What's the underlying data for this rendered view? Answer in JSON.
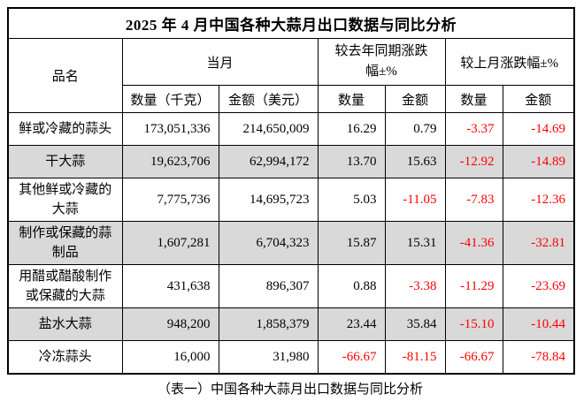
{
  "table": {
    "title": "2025 年 4 月中国各种大蒜月出口数据与同比分析",
    "caption": "（表一）中国各种大蒜月出口数据与同比分析",
    "headers": {
      "product": "品名",
      "current_month": "当月",
      "yoy": "较去年同期涨跌\n幅±%",
      "mom": "较上月涨跌幅±%",
      "qty_kg": "数量（千克）",
      "amt_usd": "金额（美元）",
      "qty": "数量",
      "amt": "金额"
    },
    "rows": [
      {
        "name": "鲜或冷藏的蒜头",
        "qty_kg": "173,051,336",
        "amt_usd": "214,650,009",
        "yoy_qty": "16.29",
        "yoy_amt": "0.79",
        "mom_qty": "-3.37",
        "mom_amt": "-14.69"
      },
      {
        "name": "干大蒜",
        "qty_kg": "19,623,706",
        "amt_usd": "62,994,172",
        "yoy_qty": "13.70",
        "yoy_amt": "15.63",
        "mom_qty": "-12.92",
        "mom_amt": "-14.89"
      },
      {
        "name": "其他鲜或冷藏的大蒜",
        "qty_kg": "7,775,736",
        "amt_usd": "14,695,723",
        "yoy_qty": "5.03",
        "yoy_amt": "-11.05",
        "mom_qty": "-7.83",
        "mom_amt": "-12.36"
      },
      {
        "name": "制作或保藏的蒜制品",
        "qty_kg": "1,607,281",
        "amt_usd": "6,704,323",
        "yoy_qty": "15.87",
        "yoy_amt": "15.31",
        "mom_qty": "-41.36",
        "mom_amt": "-32.81"
      },
      {
        "name": "用醋或醋酸制作或保藏的大蒜",
        "qty_kg": "431,638",
        "amt_usd": "896,307",
        "yoy_qty": "0.88",
        "yoy_amt": "-3.38",
        "mom_qty": "-11.29",
        "mom_amt": "-23.69"
      },
      {
        "name": "盐水大蒜",
        "qty_kg": "948,200",
        "amt_usd": "1,858,379",
        "yoy_qty": "23.44",
        "yoy_amt": "35.84",
        "mom_qty": "-15.10",
        "mom_amt": "-10.44"
      },
      {
        "name": "冷冻蒜头",
        "qty_kg": "16,000",
        "amt_usd": "31,980",
        "yoy_qty": "-66.67",
        "yoy_amt": "-81.15",
        "mom_qty": "-66.67",
        "mom_amt": "-78.84"
      }
    ],
    "colors": {
      "negative": "#ff0000",
      "positive": "#000000",
      "shaded_row": "#d9d9d9",
      "border": "#000000"
    }
  }
}
